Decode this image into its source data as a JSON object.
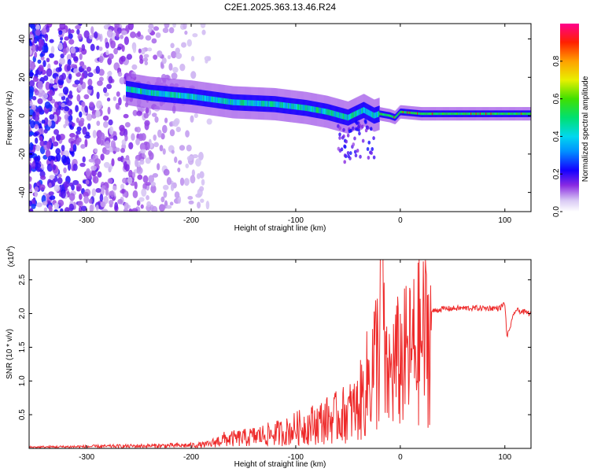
{
  "page": {
    "title": "C2E1.2025.363.13.46.R24"
  },
  "chart_data": [
    {
      "type": "heatmap",
      "title": "C2E1.2025.363.13.46.R24",
      "xlabel": "Height of straight line (km)",
      "ylabel": "Frequency (Hz)",
      "xlim": [
        -355,
        125
      ],
      "ylim": [
        -50,
        48
      ],
      "x_ticks": [
        -300,
        -200,
        -100,
        0,
        100
      ],
      "x_tick_labels": [
        "-300",
        "-200",
        "-100",
        "0",
        "100"
      ],
      "y_ticks": [
        -40,
        -20,
        0,
        20,
        40
      ],
      "y_tick_labels": [
        "-40",
        "-20",
        "0",
        "20",
        "40"
      ],
      "colorbar": {
        "label": "Normalized spectral amplitude",
        "range": [
          0,
          1
        ],
        "ticks": [
          0.0,
          0.2,
          0.4,
          0.6,
          0.8
        ],
        "tick_labels": [
          "0.0",
          "0.2",
          "0.4",
          "0.6",
          "0.8"
        ]
      },
      "ridge": {
        "description_values_only": true,
        "x": [
          -262,
          -240,
          -200,
          -160,
          -120,
          -90,
          -70,
          -50,
          -35,
          -25,
          -20,
          -10,
          -5,
          0,
          20,
          60,
          100,
          125
        ],
        "y": [
          14,
          12,
          10,
          7,
          6,
          4,
          2,
          -1,
          3,
          0,
          1,
          0,
          -1,
          2,
          1,
          1,
          1,
          1
        ]
      },
      "noise_region_x": [
        -355,
        -175
      ]
    },
    {
      "type": "line",
      "xlabel": "Height of straight line (km)",
      "ylabel": "SNR (10 * v/v)",
      "y_scale_label": "(x10",
      "y_scale_exponent": "4",
      "xlim": [
        -355,
        125
      ],
      "ylim": [
        0,
        28000
      ],
      "x_ticks": [
        -300,
        -200,
        -100,
        0,
        100
      ],
      "x_tick_labels": [
        "-300",
        "-200",
        "-100",
        "0",
        "100"
      ],
      "y_ticks": [
        5000,
        10000,
        15000,
        20000,
        25000
      ],
      "y_tick_labels": [
        "0.5",
        "1.0",
        "1.5",
        "2.0",
        "2.5"
      ],
      "series": [
        {
          "name": "SNR",
          "color": "#ee2a2a",
          "x": [
            -355,
            -300,
            -250,
            -200,
            -180,
            -170,
            -150,
            -130,
            -110,
            -100,
            -90,
            -80,
            -70,
            -60,
            -50,
            -40,
            -35,
            -30,
            -25,
            -20,
            -18,
            -15,
            -10,
            -5,
            0,
            10,
            20,
            30,
            40,
            60,
            80,
            95,
            100,
            102,
            110,
            125
          ],
          "y": [
            200,
            300,
            400,
            500,
            700,
            1200,
            1400,
            1800,
            2200,
            2700,
            3000,
            3400,
            3800,
            4200,
            4800,
            5500,
            7000,
            9000,
            11000,
            13000,
            28000,
            12000,
            13000,
            15000,
            15500,
            17000,
            19500,
            20300,
            20700,
            20800,
            20800,
            20800,
            21500,
            16500,
            20500,
            20000
          ]
        }
      ]
    }
  ]
}
